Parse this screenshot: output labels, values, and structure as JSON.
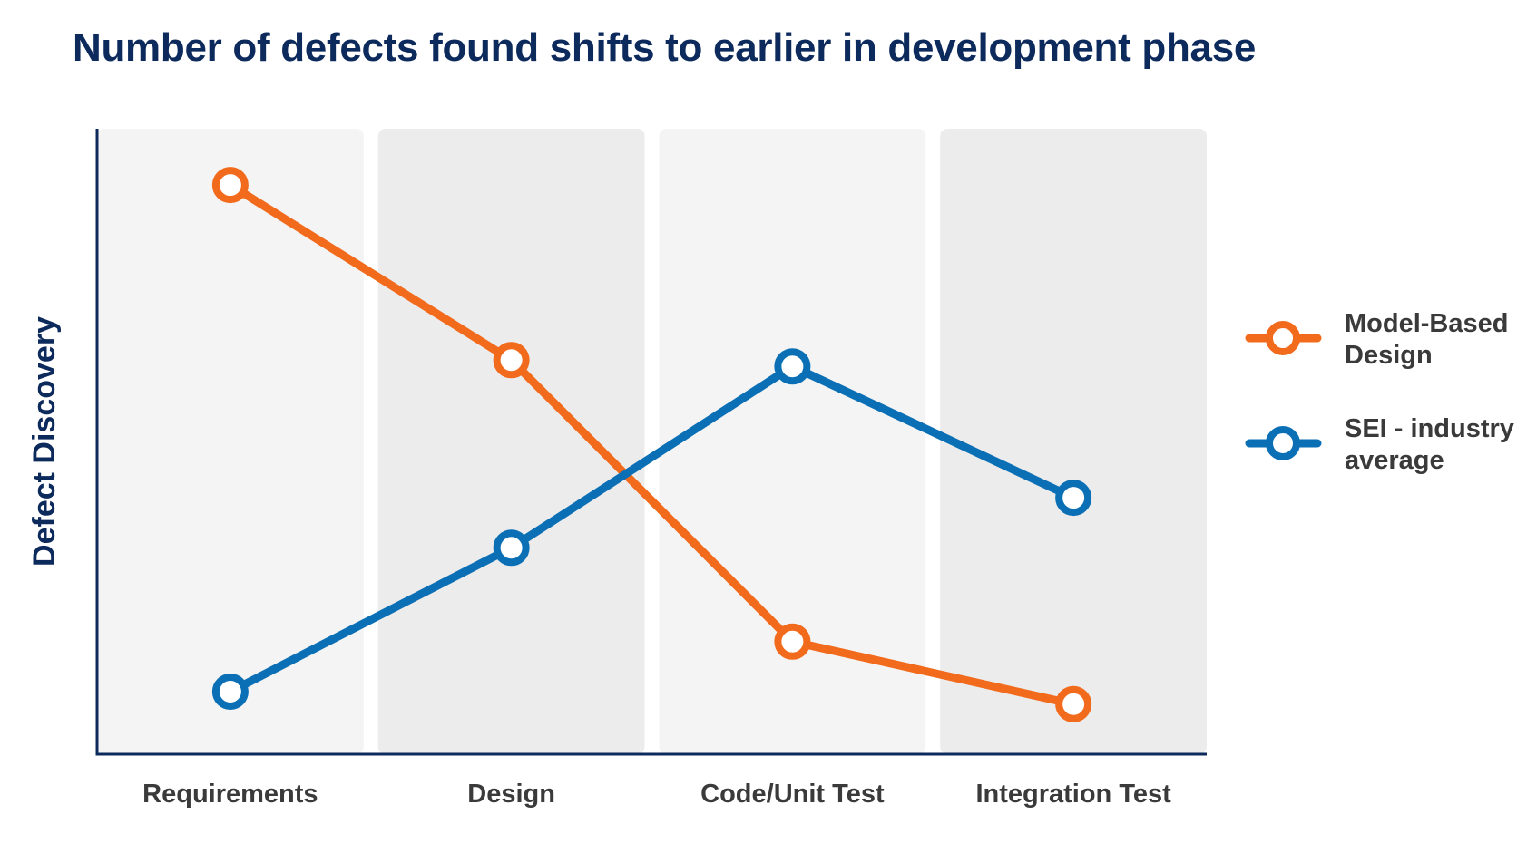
{
  "chart_data": {
    "type": "line",
    "title": "Number of defects found shifts to earlier in development phase",
    "xlabel": "",
    "ylabel": "Defect Discovery",
    "categories": [
      "Requirements",
      "Design",
      "Code/Unit Test",
      "Integration Test"
    ],
    "ylim": [
      0,
      100
    ],
    "grid": false,
    "legend_position": "right",
    "series": [
      {
        "name": "Model-Based Design",
        "legend_lines": [
          "Model-Based",
          "Design"
        ],
        "color": "#f26a1b",
        "values": [
          91,
          63,
          18,
          8
        ]
      },
      {
        "name": "SEI - industry average",
        "legend_lines": [
          "SEI - industry",
          "average"
        ],
        "color": "#0b6fb5",
        "values": [
          10,
          33,
          62,
          41
        ]
      }
    ],
    "band_colors": [
      "#f4f4f4",
      "#ececec"
    ],
    "axis_color": "#0d2a5c"
  }
}
